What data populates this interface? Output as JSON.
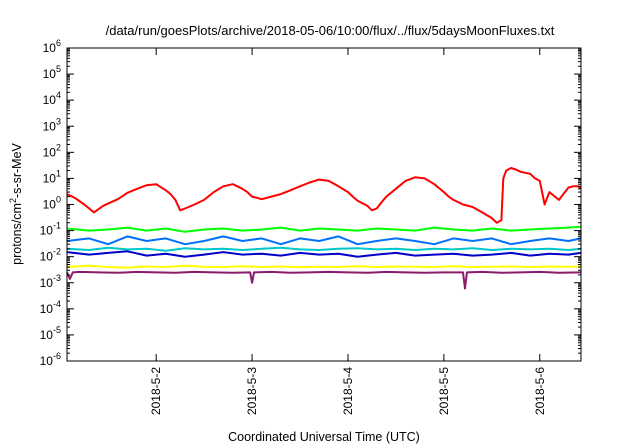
{
  "chart_data": {
    "type": "line",
    "title": "/data/run/goesPlots/archive/2018-05-06/10:00/flux/../flux/5daysMoonFluxes.txt",
    "xlabel": "Coordinated Universal Time (UTC)",
    "ylabel": "protons/cm2-s-sr-MeV",
    "ylabel_parts": {
      "pre": "protons/cm",
      "sup": "2",
      "post": "-s-sr-MeV"
    },
    "y_scale": "log",
    "ylim": [
      1e-06,
      1000000.0
    ],
    "yticks": [
      {
        "base": "10",
        "exp": "-6",
        "value": 1e-06
      },
      {
        "base": "10",
        "exp": "-5",
        "value": 1e-05
      },
      {
        "base": "10",
        "exp": "-4",
        "value": 0.0001
      },
      {
        "base": "10",
        "exp": "-3",
        "value": 0.001
      },
      {
        "base": "10",
        "exp": "-2",
        "value": 0.01
      },
      {
        "base": "10",
        "exp": "-1",
        "value": 0.1
      },
      {
        "base": "10",
        "exp": "0",
        "value": 1.0
      },
      {
        "base": "10",
        "exp": "1",
        "value": 10.0
      },
      {
        "base": "10",
        "exp": "2",
        "value": 100.0
      },
      {
        "base": "10",
        "exp": "3",
        "value": 1000.0
      },
      {
        "base": "10",
        "exp": "4",
        "value": 10000.0
      },
      {
        "base": "10",
        "exp": "5",
        "value": 100000.0
      },
      {
        "base": "10",
        "exp": "6",
        "value": 1000000.0
      }
    ],
    "xlim": [
      2018.0501,
      2018.0506
    ],
    "xlim_days": [
      1.07,
      6.43
    ],
    "xticks": [
      {
        "label": "2018-5-2",
        "day": 2
      },
      {
        "label": "2018-5-3",
        "day": 3
      },
      {
        "label": "2018-5-4",
        "day": 4
      },
      {
        "label": "2018-5-5",
        "day": 5
      },
      {
        "label": "2018-5-6",
        "day": 6
      }
    ],
    "grid": false,
    "legend": "none",
    "series": [
      {
        "color": "#ff0000",
        "x": [
          1.07,
          1.15,
          1.25,
          1.35,
          1.45,
          1.6,
          1.7,
          1.8,
          1.9,
          2.0,
          2.1,
          2.15,
          2.2,
          2.25,
          2.3,
          2.4,
          2.5,
          2.6,
          2.7,
          2.8,
          2.9,
          2.95,
          3.0,
          3.05,
          3.1,
          3.2,
          3.3,
          3.4,
          3.5,
          3.6,
          3.7,
          3.8,
          3.9,
          4.0,
          4.05,
          4.1,
          4.2,
          4.25,
          4.3,
          4.35,
          4.4,
          4.5,
          4.6,
          4.7,
          4.8,
          4.9,
          5.0,
          5.05,
          5.1,
          5.2,
          5.3,
          5.4,
          5.5,
          5.55,
          5.6,
          5.62,
          5.65,
          5.7,
          5.75,
          5.8,
          5.9,
          5.95,
          6.0,
          6.05,
          6.1,
          6.2,
          6.3,
          6.35,
          6.4,
          6.43
        ],
        "values": [
          2.5,
          1.8,
          1.0,
          0.5,
          0.9,
          1.6,
          2.8,
          4.0,
          5.5,
          6.0,
          3.5,
          2.5,
          1.5,
          0.6,
          0.7,
          1.0,
          1.5,
          3.0,
          5.0,
          6.0,
          4.0,
          3.0,
          2.0,
          1.8,
          1.6,
          2.0,
          2.5,
          3.5,
          5.0,
          7.0,
          9.0,
          8.0,
          5.0,
          3.0,
          2.0,
          1.4,
          0.9,
          0.6,
          0.7,
          1.2,
          2.0,
          4.0,
          8.0,
          11,
          10,
          6.0,
          3.0,
          2.0,
          1.5,
          1.0,
          0.8,
          0.5,
          0.3,
          0.2,
          0.25,
          10,
          20,
          25,
          22,
          18,
          15,
          10,
          8.0,
          1.0,
          3.0,
          1.5,
          4.5,
          5.0,
          5.0,
          4.0
        ]
      },
      {
        "color": "#00ff00",
        "x": [
          1.07,
          1.3,
          1.5,
          1.7,
          1.9,
          2.1,
          2.3,
          2.5,
          2.7,
          2.9,
          3.1,
          3.3,
          3.5,
          3.7,
          3.9,
          4.1,
          4.3,
          4.5,
          4.7,
          4.9,
          5.1,
          5.3,
          5.5,
          5.7,
          5.9,
          6.1,
          6.3,
          6.43
        ],
        "values": [
          0.12,
          0.1,
          0.11,
          0.13,
          0.1,
          0.12,
          0.09,
          0.11,
          0.12,
          0.1,
          0.11,
          0.13,
          0.1,
          0.12,
          0.11,
          0.1,
          0.12,
          0.11,
          0.1,
          0.13,
          0.11,
          0.1,
          0.12,
          0.1,
          0.11,
          0.12,
          0.13,
          0.14
        ]
      },
      {
        "color": "#0070ff",
        "x": [
          1.07,
          1.3,
          1.5,
          1.7,
          1.9,
          2.1,
          2.3,
          2.5,
          2.7,
          2.9,
          3.1,
          3.3,
          3.5,
          3.7,
          3.9,
          4.1,
          4.3,
          4.5,
          4.7,
          4.9,
          5.1,
          5.3,
          5.5,
          5.7,
          5.9,
          6.1,
          6.3,
          6.43
        ],
        "values": [
          0.04,
          0.05,
          0.03,
          0.06,
          0.04,
          0.05,
          0.03,
          0.04,
          0.06,
          0.04,
          0.05,
          0.03,
          0.05,
          0.04,
          0.06,
          0.03,
          0.04,
          0.05,
          0.04,
          0.03,
          0.05,
          0.04,
          0.05,
          0.03,
          0.04,
          0.05,
          0.04,
          0.05
        ]
      },
      {
        "color": "#00c8c8",
        "x": [
          1.07,
          1.3,
          1.5,
          1.7,
          1.9,
          2.1,
          2.3,
          2.5,
          2.7,
          2.9,
          3.1,
          3.3,
          3.5,
          3.7,
          3.9,
          4.1,
          4.3,
          4.5,
          4.7,
          4.9,
          5.1,
          5.3,
          5.5,
          5.7,
          5.9,
          6.1,
          6.3,
          6.43
        ],
        "values": [
          0.02,
          0.018,
          0.022,
          0.019,
          0.02,
          0.017,
          0.021,
          0.019,
          0.02,
          0.018,
          0.02,
          0.022,
          0.019,
          0.018,
          0.02,
          0.021,
          0.019,
          0.02,
          0.018,
          0.02,
          0.019,
          0.021,
          0.018,
          0.02,
          0.019,
          0.02,
          0.018,
          0.02
        ]
      },
      {
        "color": "#0000c8",
        "x": [
          1.07,
          1.3,
          1.5,
          1.7,
          1.9,
          2.1,
          2.3,
          2.5,
          2.7,
          2.9,
          3.1,
          3.3,
          3.5,
          3.7,
          3.9,
          4.1,
          4.3,
          4.5,
          4.7,
          4.9,
          5.1,
          5.3,
          5.5,
          5.7,
          5.9,
          6.1,
          6.3,
          6.43
        ],
        "values": [
          0.015,
          0.012,
          0.014,
          0.016,
          0.011,
          0.013,
          0.01,
          0.012,
          0.015,
          0.012,
          0.013,
          0.011,
          0.014,
          0.012,
          0.013,
          0.01,
          0.012,
          0.014,
          0.011,
          0.012,
          0.013,
          0.011,
          0.012,
          0.014,
          0.011,
          0.013,
          0.012,
          0.014
        ]
      },
      {
        "color": "#ffff00",
        "x": [
          1.07,
          1.3,
          1.5,
          1.7,
          1.9,
          2.1,
          2.3,
          2.5,
          2.7,
          2.9,
          3.1,
          3.3,
          3.5,
          3.7,
          3.9,
          4.1,
          4.3,
          4.5,
          4.7,
          4.9,
          5.1,
          5.3,
          5.5,
          5.7,
          5.9,
          6.1,
          6.3,
          6.43
        ],
        "values": [
          0.004,
          0.0045,
          0.004,
          0.0038,
          0.0042,
          0.004,
          0.0045,
          0.0041,
          0.004,
          0.0043,
          0.004,
          0.0042,
          0.0039,
          0.0041,
          0.004,
          0.0043,
          0.004,
          0.0042,
          0.0041,
          0.004,
          0.0043,
          0.004,
          0.0041,
          0.0042,
          0.004,
          0.0042,
          0.0041,
          0.0042
        ]
      },
      {
        "color": "#8b1a6b",
        "x": [
          1.07,
          1.1,
          1.13,
          1.2,
          1.4,
          1.6,
          1.8,
          2.0,
          2.2,
          2.4,
          2.6,
          2.8,
          2.98,
          3.0,
          3.02,
          3.2,
          3.4,
          3.6,
          3.8,
          4.0,
          4.2,
          4.4,
          4.6,
          4.8,
          5.0,
          5.2,
          5.22,
          5.24,
          5.4,
          5.6,
          5.8,
          6.0,
          6.2,
          6.43
        ],
        "values": [
          0.0025,
          0.0014,
          0.0025,
          0.0026,
          0.0025,
          0.0024,
          0.0026,
          0.0025,
          0.0024,
          0.0026,
          0.0025,
          0.0024,
          0.0025,
          0.001,
          0.0025,
          0.0026,
          0.0024,
          0.0025,
          0.0026,
          0.0025,
          0.0024,
          0.0026,
          0.0025,
          0.0024,
          0.0025,
          0.0025,
          0.0006,
          0.0025,
          0.0026,
          0.0024,
          0.0025,
          0.0026,
          0.0024,
          0.0025
        ]
      }
    ]
  }
}
